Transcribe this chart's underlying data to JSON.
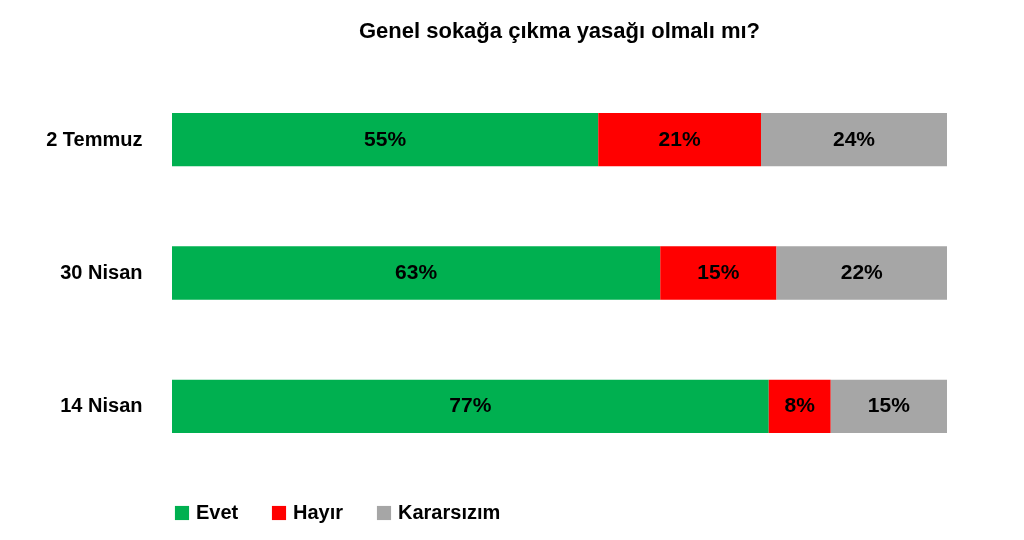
{
  "chart_data": {
    "type": "bar",
    "title": "Genel sokağa çıkma yasağı olmalı mı?",
    "orientation": "horizontal",
    "stacked": true,
    "categories": [
      "2 Temmuz",
      "30 Nisan",
      "14 Nisan"
    ],
    "series": [
      {
        "name": "Evet",
        "color": "#00b050",
        "values": [
          55,
          63,
          77
        ],
        "value_labels": [
          "55%",
          "63%",
          "77%"
        ]
      },
      {
        "name": "Hayır",
        "color": "#ff0000",
        "values": [
          21,
          15,
          8
        ],
        "value_labels": [
          "21%",
          "15%",
          "8%"
        ]
      },
      {
        "name": "Kararsızım",
        "color": "#a6a6a6",
        "values": [
          24,
          22,
          15
        ],
        "value_labels": [
          "24%",
          "22%",
          "15%"
        ]
      }
    ],
    "xlim": [
      0,
      100
    ],
    "tick_labels": "y",
    "legend": "bottom"
  }
}
